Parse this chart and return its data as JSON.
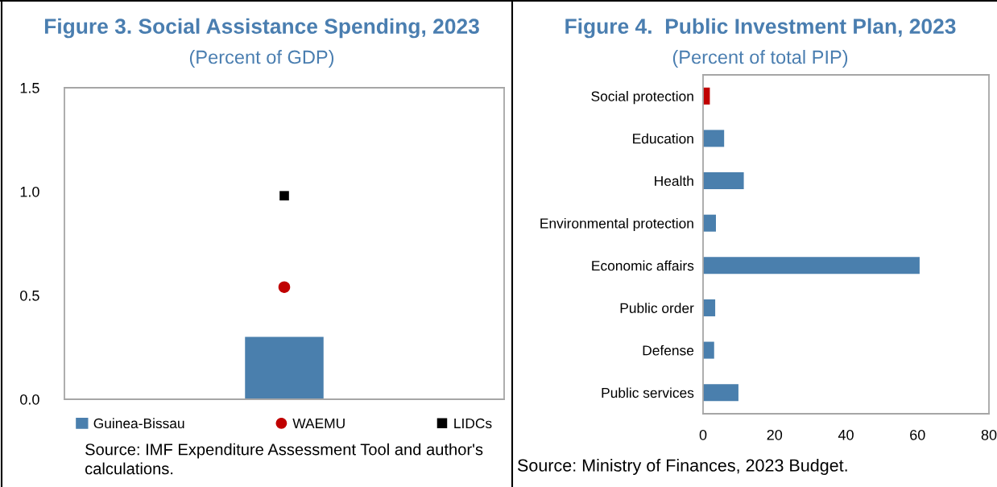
{
  "chart_data": [
    {
      "type": "bar",
      "title": "Figure 3. Social Assistance Spending, 2023",
      "subtitle": "(Percent of GDP)",
      "categories": [
        null
      ],
      "series": [
        {
          "name": "Guinea-Bissau",
          "type": "bar",
          "color": "#4a7fad",
          "values": [
            0.3
          ]
        },
        {
          "name": "WAEMU",
          "type": "scatter",
          "marker": "circle",
          "color": "#c00000",
          "values": [
            0.54
          ]
        },
        {
          "name": "LIDCs",
          "type": "scatter",
          "marker": "square",
          "color": "#000000",
          "values": [
            0.98
          ]
        }
      ],
      "ylim": [
        0,
        1.5
      ],
      "yticks": [
        {
          "value": 0,
          "label": "0.0"
        },
        {
          "value": 0.5,
          "label": "0.5"
        },
        {
          "value": 1,
          "label": "1.0"
        },
        {
          "value": 1.5,
          "label": "1.5"
        }
      ],
      "grid": false,
      "legend": "bottom",
      "annotations": [
        "Source: IMF Expenditure Assessment Tool and author's calculations."
      ]
    },
    {
      "type": "bar",
      "orientation": "horizontal",
      "title": "Figure 4.  Public Investment Plan, 2023",
      "subtitle": "(Percent of total PIP)",
      "categories": [
        "Social protection",
        "Education",
        "Health",
        "Environmental protection",
        "Economic affairs",
        "Public order",
        "Defense",
        "Public services"
      ],
      "values": [
        1.9,
        5.9,
        11.4,
        3.6,
        60.6,
        3.4,
        3.1,
        9.9
      ],
      "colors": [
        "#c00000",
        "#4a7fad",
        "#4a7fad",
        "#4a7fad",
        "#4a7fad",
        "#4a7fad",
        "#4a7fad",
        "#4a7fad"
      ],
      "xlim": [
        0,
        80
      ],
      "xticks": [
        0,
        20,
        40,
        60,
        80
      ],
      "grid": false,
      "annotations": [
        "Source: Ministry of Finances, 2023 Budget."
      ]
    }
  ]
}
